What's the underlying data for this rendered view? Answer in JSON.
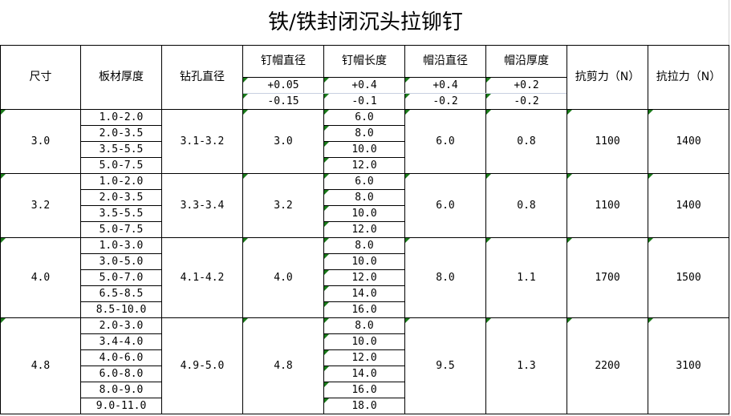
{
  "title": "铁/铁封闭沉头拉铆钉",
  "headers": {
    "size": "尺寸",
    "plate_thickness": "板材厚度",
    "drill_diameter": "钻孔直径",
    "head_diameter": "钉帽直径",
    "head_length": "钉帽长度",
    "brim_diameter": "帽沿直径",
    "brim_thickness": "帽沿厚度",
    "shear": "抗剪力（N）",
    "tensile": "抗拉力（N）"
  },
  "tolerances": {
    "head_diameter": [
      "+0.05",
      "-0.15"
    ],
    "head_length": [
      "+0.4",
      "-0.1"
    ],
    "brim_diameter": [
      "+0.4",
      "-0.2"
    ],
    "brim_thickness": [
      "+0.2",
      "-0.2"
    ]
  },
  "groups": [
    {
      "size": "3.0",
      "plates": [
        "1.0-2.0",
        "2.0-3.5",
        "3.5-5.5",
        "5.0-7.5"
      ],
      "drill": "3.1-3.2",
      "head_diameter": "3.0",
      "lengths": [
        "6.0",
        "8.0",
        "10.0",
        "12.0"
      ],
      "brim_diameter": "6.0",
      "brim_thickness": "0.8",
      "shear": "1100",
      "tensile": "1400"
    },
    {
      "size": "3.2",
      "plates": [
        "1.0-2.0",
        "2.0-3.5",
        "3.5-5.5",
        "5.0-7.5"
      ],
      "drill": "3.3-3.4",
      "head_diameter": "3.2",
      "lengths": [
        "6.0",
        "8.0",
        "10.0",
        "12.0"
      ],
      "brim_diameter": "6.0",
      "brim_thickness": "0.8",
      "shear": "1100",
      "tensile": "1400"
    },
    {
      "size": "4.0",
      "plates": [
        "1.0-3.0",
        "3.0-5.0",
        "5.0-7.0",
        "6.5-8.5",
        "8.5-10.0"
      ],
      "drill": "4.1-4.2",
      "head_diameter": "4.0",
      "lengths": [
        "8.0",
        "10.0",
        "12.0",
        "14.0",
        "16.0"
      ],
      "brim_diameter": "8.0",
      "brim_thickness": "1.1",
      "shear": "1700",
      "tensile": "1500"
    },
    {
      "size": "4.8",
      "plates": [
        "2.0-3.0",
        "3.4-4.0",
        "4.0-6.0",
        "6.0-8.0",
        "8.0-9.0",
        "9.0-11.0"
      ],
      "drill": "4.9-5.0",
      "head_diameter": "4.8",
      "lengths": [
        "8.0",
        "10.0",
        "12.0",
        "14.0",
        "16.0",
        "18.0"
      ],
      "brim_diameter": "9.5",
      "brim_thickness": "1.3",
      "shear": "2200",
      "tensile": "3100"
    }
  ],
  "colors": {
    "comment_marker": "#1a7a1a",
    "border": "#000000"
  }
}
